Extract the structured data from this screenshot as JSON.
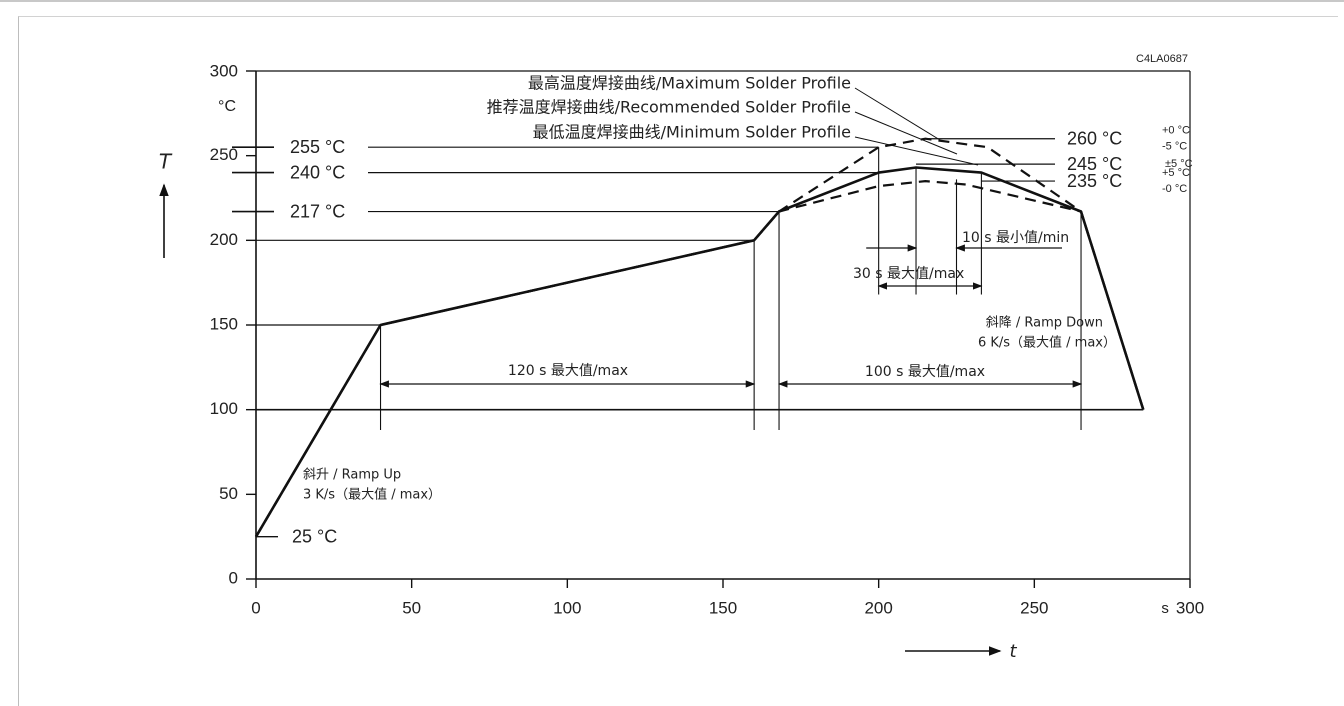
{
  "chart_data": {
    "type": "line",
    "figure_id": "C4LA0687",
    "y_axis": {
      "unit_label": "°C",
      "symbol": "T",
      "ticks": [
        0,
        50,
        100,
        150,
        200,
        250,
        300
      ],
      "ylim": [
        0,
        300
      ]
    },
    "x_axis": {
      "unit_label": "s",
      "symbol": "t",
      "ticks": [
        0,
        50,
        100,
        150,
        200,
        250,
        300
      ],
      "xlim": [
        0,
        300
      ]
    },
    "series": [
      {
        "name": "最高温度焊接曲线/Maximum Solder Profile",
        "style": "dashed",
        "points": [
          [
            0,
            25
          ],
          [
            40,
            150
          ],
          [
            160,
            200
          ],
          [
            168,
            217
          ],
          [
            200,
            255
          ],
          [
            215,
            260
          ],
          [
            235,
            255
          ],
          [
            265,
            217
          ],
          [
            285,
            100
          ]
        ]
      },
      {
        "name": "推荐温度焊接曲线/Recommended Solder Profile",
        "style": "solid",
        "points": [
          [
            0,
            25
          ],
          [
            40,
            150
          ],
          [
            160,
            200
          ],
          [
            168,
            217
          ],
          [
            200,
            240
          ],
          [
            212,
            243
          ],
          [
            233,
            240
          ],
          [
            265,
            217
          ],
          [
            285,
            100
          ]
        ]
      },
      {
        "name": "最低温度焊接曲线/Minimum Solder Profile",
        "style": "dashed",
        "points": [
          [
            0,
            25
          ],
          [
            40,
            150
          ],
          [
            160,
            200
          ],
          [
            168,
            217
          ],
          [
            200,
            232
          ],
          [
            215,
            235
          ],
          [
            228,
            233
          ],
          [
            265,
            217
          ],
          [
            285,
            100
          ]
        ]
      }
    ],
    "y_markers": [
      {
        "text": "255 °C",
        "value": 255,
        "side": "left"
      },
      {
        "text": "240 °C",
        "value": 240,
        "side": "left"
      },
      {
        "text": "217 °C",
        "value": 217,
        "side": "left"
      },
      {
        "text": "25 °C",
        "value": 25,
        "side": "left"
      },
      {
        "text": "260 °C",
        "value": 260,
        "side": "right",
        "tol_top": "+0 °C",
        "tol_bottom": "-5 °C"
      },
      {
        "text": "245 °C",
        "value": 245,
        "side": "right",
        "tol": "±5 °C"
      },
      {
        "text": "235 °C",
        "value": 235,
        "side": "right",
        "tol_top": "+5 °C",
        "tol_bottom": "-0 °C"
      }
    ],
    "spans": [
      {
        "text": "120 s 最大值/max",
        "x_start": 40,
        "x_end": 160
      },
      {
        "text": "100 s 最大值/max",
        "x_start": 168,
        "x_end": 265
      },
      {
        "text": "30 s 最大值/max",
        "x_start": 200,
        "x_end": 233
      },
      {
        "text": "10 s 最小值/min",
        "x_start": 212,
        "x_end": 225
      }
    ],
    "annotations": {
      "ramp_up_line1": "斜升 / Ramp Up",
      "ramp_up_line2": "3 K/s（最大值 / max）",
      "ramp_down_line1": "斜降 / Ramp Down",
      "ramp_down_line2": "6 K/s（最大值 / max）"
    }
  }
}
